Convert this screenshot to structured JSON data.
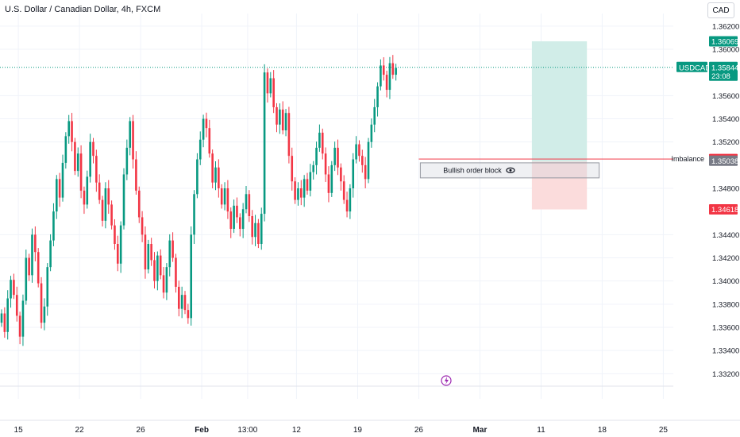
{
  "header": {
    "title": "U.S. Dollar / Canadian Dollar, 4h, FXCM",
    "currency": "CAD"
  },
  "colors": {
    "up": "#089981",
    "down": "#f23645",
    "target_zone": "#d1ede8",
    "stop_zone": "#fbdcdc",
    "price_line": "#089981",
    "imbalance_line": "#f23645",
    "grid": "#f0f3fa",
    "event_icon": "#9c27b0"
  },
  "chart_data": {
    "type": "candlestick",
    "symbol": "USDCAD",
    "timeframe": "4h",
    "ylim": [
      1.3312,
      1.3624
    ],
    "y_ticks": [
      "1.36200",
      "1.36000",
      "1.35600",
      "1.35400",
      "1.35200",
      "1.34800",
      "1.34400",
      "1.34200",
      "1.34000",
      "1.33800",
      "1.33600",
      "1.33400",
      "1.33200"
    ],
    "x_ticks": [
      {
        "label": "15",
        "pos": 6,
        "bold": false
      },
      {
        "label": "22",
        "pos": 26,
        "bold": false
      },
      {
        "label": "26",
        "pos": 46,
        "bold": false
      },
      {
        "label": "Feb",
        "pos": 66,
        "bold": true
      },
      {
        "label": "13:00",
        "pos": 81,
        "bold": false
      },
      {
        "label": "12",
        "pos": 97,
        "bold": false
      },
      {
        "label": "19",
        "pos": 117,
        "bold": false
      },
      {
        "label": "26",
        "pos": 137,
        "bold": false
      },
      {
        "label": "Mar",
        "pos": 157,
        "bold": true
      },
      {
        "label": "11",
        "pos": 177,
        "bold": false
      },
      {
        "label": "18",
        "pos": 197,
        "bold": false
      },
      {
        "label": "25",
        "pos": 217,
        "bold": false
      }
    ],
    "candles_close": [
      1.3372,
      1.3356,
      1.3385,
      1.3401,
      1.3388,
      1.337,
      1.3352,
      1.3383,
      1.342,
      1.3405,
      1.344,
      1.3425,
      1.3398,
      1.3364,
      1.3378,
      1.3412,
      1.3435,
      1.346,
      1.3488,
      1.3472,
      1.3502,
      1.3525,
      1.3538,
      1.352,
      1.3495,
      1.351,
      1.3478,
      1.3466,
      1.349,
      1.352,
      1.3508,
      1.3485,
      1.347,
      1.3452,
      1.348,
      1.3466,
      1.3448,
      1.3432,
      1.3415,
      1.3448,
      1.3492,
      1.3515,
      1.3538,
      1.3505,
      1.3478,
      1.3455,
      1.344,
      1.341,
      1.3432,
      1.3418,
      1.34,
      1.3422,
      1.3405,
      1.339,
      1.3412,
      1.3435,
      1.342,
      1.3395,
      1.3376,
      1.3388,
      1.3375,
      1.3368,
      1.344,
      1.3475,
      1.3505,
      1.3522,
      1.354,
      1.3532,
      1.351,
      1.3485,
      1.3498,
      1.348,
      1.3466,
      1.348,
      1.346,
      1.3445,
      1.3465,
      1.3455,
      1.3445,
      1.3462,
      1.3475,
      1.3456,
      1.3438,
      1.345,
      1.3432,
      1.3458,
      1.358,
      1.3562,
      1.3575,
      1.355,
      1.3535,
      1.3548,
      1.353,
      1.3545,
      1.3508,
      1.3486,
      1.347,
      1.348,
      1.3472,
      1.3488,
      1.3478,
      1.3494,
      1.35,
      1.3515,
      1.3528,
      1.351,
      1.3492,
      1.3476,
      1.35,
      1.3515,
      1.3498,
      1.3486,
      1.347,
      1.346,
      1.348,
      1.3505,
      1.3518,
      1.3508,
      1.35,
      1.3488,
      1.352,
      1.3535,
      1.355,
      1.3568,
      1.3586,
      1.3578,
      1.3565,
      1.3588,
      1.3578,
      1.3584
    ],
    "current_price": "1.35844",
    "current_countdown": "23:08",
    "price_tags": [
      {
        "name": "target",
        "value": "1.36069",
        "y": 1.36069,
        "color": "#089981"
      },
      {
        "name": "imbalance-upper",
        "value": "1.35053",
        "y": 1.35053,
        "color": "#f23645"
      },
      {
        "name": "imbalance-lower",
        "value": "1.35038",
        "y": 1.35038,
        "color": "#787b86"
      },
      {
        "name": "stop",
        "value": "1.34618",
        "y": 1.34618,
        "color": "#f23645"
      }
    ],
    "annotations": {
      "order_block_label": "Bullish order block",
      "order_block_top": 1.3502,
      "order_block_bottom": 1.3489,
      "imbalance_label": "Imbalance",
      "imbalance_level": 1.35053,
      "position_entry": 1.3503,
      "position_target": 1.36069,
      "position_stop": 1.34618
    }
  }
}
